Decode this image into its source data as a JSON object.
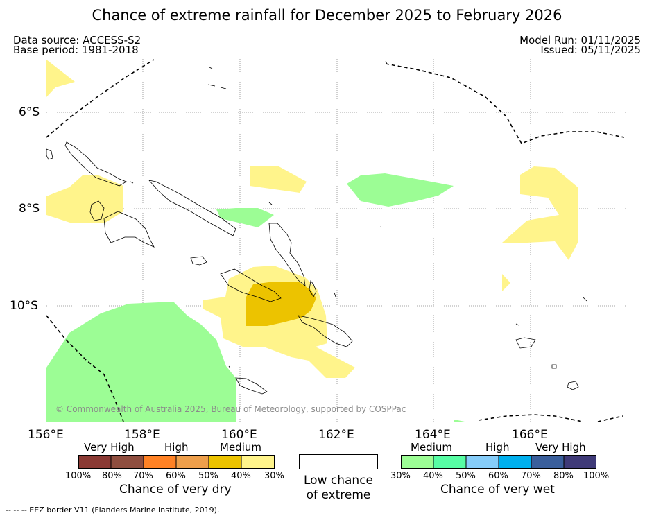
{
  "title": "Chance of extreme rainfall for December 2025 to February 2026",
  "data_source": "Data source: ACCESS-S2",
  "base_period": "Base period: 1981-2018",
  "model_run": "Model Run: 01/11/2025",
  "issued": "Issued: 05/11/2025",
  "lat_labels": [
    "6°S",
    "8°S",
    "10°S"
  ],
  "lon_labels": [
    "156°E",
    "158°E",
    "160°E",
    "162°E",
    "164°E",
    "166°E"
  ],
  "copyright": "© Commonwealth of Australia 2025, Bureau of Meteorology, supported by COSPPac",
  "legend": {
    "dry": {
      "categories": [
        "Very High",
        "High",
        "Medium"
      ],
      "percents": [
        "100%",
        "80%",
        "70%",
        "60%",
        "50%",
        "40%",
        "30%"
      ],
      "colors": [
        "#8b3a34",
        "#8f4e3f",
        "#ff8225",
        "#ee9f4b",
        "#ecc300",
        "#fff48b"
      ],
      "label": "Chance of very dry"
    },
    "low": {
      "label_line1": "Low chance",
      "label_line2": "of extreme"
    },
    "wet": {
      "categories": [
        "Medium",
        "High",
        "Very High"
      ],
      "percents": [
        "30%",
        "40%",
        "50%",
        "60%",
        "70%",
        "80%",
        "100%"
      ],
      "colors": [
        "#9cfd95",
        "#57fda4",
        "#86cdf9",
        "#00b0ee",
        "#3a5f9c",
        "#3f3a78"
      ],
      "label": "Chance of very wet"
    }
  },
  "footnote": "--  --  -- EEZ border V11 (Flanders Marine Institute, 2019)."
}
